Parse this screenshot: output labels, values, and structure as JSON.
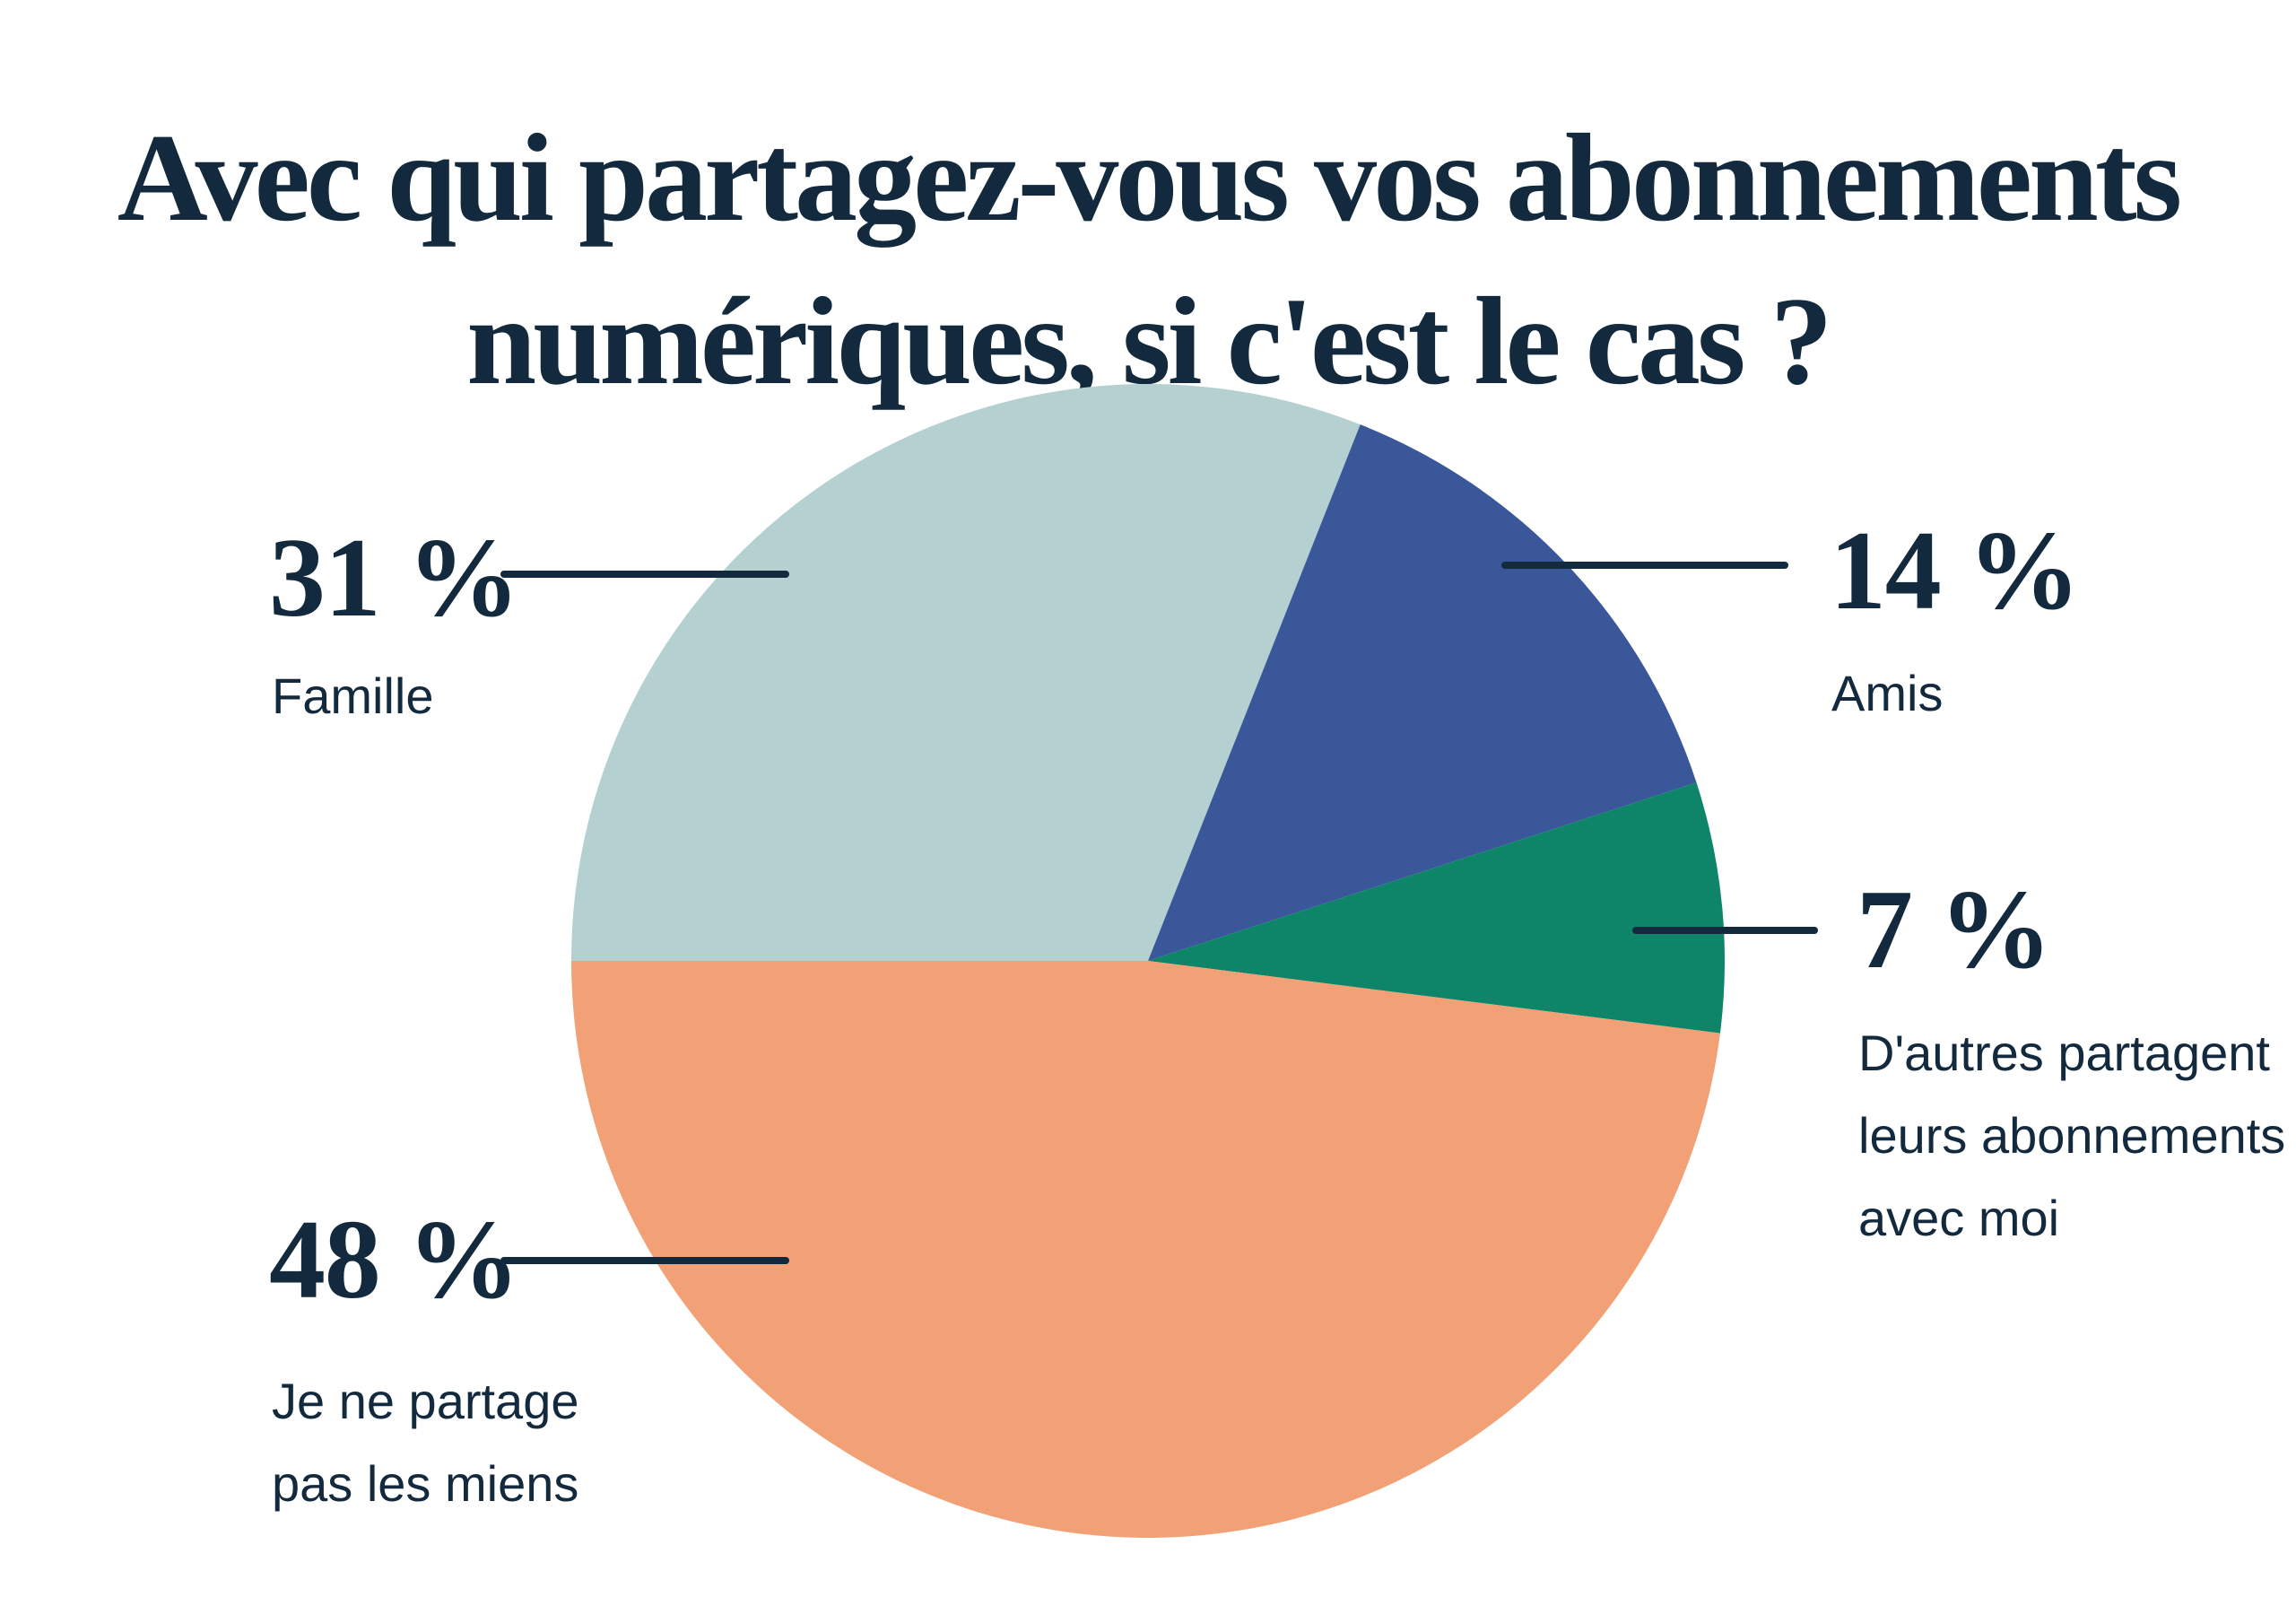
{
  "title": {
    "line1": "Avec qui partagez-vous vos abonnements",
    "line2": "numériques, si c'est le cas ?"
  },
  "colors": {
    "ink": "#13293d",
    "background": "#ffffff"
  },
  "chart_data": {
    "type": "pie",
    "title": "Avec qui partagez-vous vos abonnements numériques, si c'est le cas ?",
    "start_angle": 270,
    "direction": "clockwise",
    "legend_position": "callouts",
    "slices": [
      {
        "id": "famille",
        "label": "Famille",
        "value_pct": 31,
        "display_value": "31 %",
        "color": "#b5d0d1",
        "callout_side": "left"
      },
      {
        "id": "amis",
        "label": "Amis",
        "value_pct": 14,
        "display_value": "14 %",
        "color": "#3a5899",
        "callout_side": "right"
      },
      {
        "id": "autres",
        "label": "D'autres partagent leurs abonnements avec moi",
        "value_pct": 7,
        "display_value": "7 %",
        "color": "#0e8569",
        "callout_side": "right"
      },
      {
        "id": "moi",
        "label": "Je ne partage pas les miens",
        "value_pct": 48,
        "display_value": "48 %",
        "color": "#f2a076",
        "callout_side": "left"
      }
    ]
  }
}
